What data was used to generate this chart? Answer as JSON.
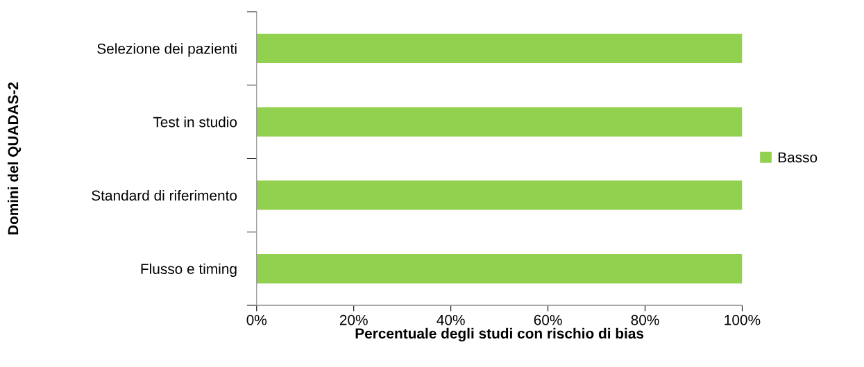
{
  "chart_data": {
    "type": "bar",
    "orientation": "horizontal",
    "xlabel": "Percentuale degli studi con rischio di bias",
    "ylabel": "Domini del QUADAS-2",
    "categories": [
      "Selezione dei pazienti",
      "Test in studio",
      "Standard di riferimento",
      "Flusso e timing"
    ],
    "series": [
      {
        "name": "Basso",
        "color": "#92d050",
        "values": [
          100,
          100,
          100,
          100
        ]
      }
    ],
    "xlim": [
      0,
      100
    ],
    "xticks": [
      {
        "value": 0,
        "label": "0%"
      },
      {
        "value": 20,
        "label": "20%"
      },
      {
        "value": 40,
        "label": "40%"
      },
      {
        "value": 60,
        "label": "60%"
      },
      {
        "value": 80,
        "label": "80%"
      },
      {
        "value": 100,
        "label": "100%"
      }
    ],
    "grid": false,
    "legend": "right"
  }
}
